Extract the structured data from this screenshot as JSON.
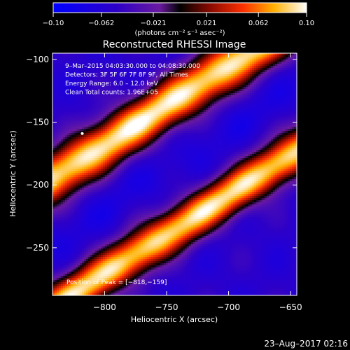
{
  "chart_data": {
    "type": "heatmap",
    "title": "Reconstructed RHESSI Image",
    "xlabel": "Heliocentric X (arcsec)",
    "ylabel": "Heliocentric Y (arcsec)",
    "xlim": [
      -842,
      -645
    ],
    "ylim": [
      -288,
      -95
    ],
    "x_ticks": [
      -800,
      -750,
      -700,
      -650
    ],
    "x_tick_labels": [
      "−800",
      "−750",
      "−700",
      "−650"
    ],
    "y_ticks": [
      -100,
      -150,
      -200,
      -250
    ],
    "y_tick_labels": [
      "−100",
      "−150",
      "−200",
      "−250"
    ],
    "colorbar": {
      "range": [
        -0.1,
        0.1
      ],
      "ticks": [
        -0.1,
        -0.062,
        -0.021,
        0.021,
        0.062,
        0.1
      ],
      "tick_labels": [
        "−0.10",
        "−0.062",
        "−0.021",
        "0.021",
        "0.062",
        "0.10"
      ],
      "unit_label": "(photons cm⁻² s⁻¹ asec⁻²)"
    },
    "annotations": [
      " 9–Mar–2015 04:03:30.000 to 04:08:30.000",
      "Detectors: 3F 5F 6F 7F 8F 9F, All Times",
      "Energy Range: 6.0 – 12.0 keV",
      "Clean     Total counts: 1.96E+05"
    ],
    "peak_label": "Position of Peak = [−818,−159]",
    "peak": [
      -818,
      -159
    ],
    "bands": [
      {
        "y_intercept": -143,
        "slope": 0.63,
        "half_width": 27,
        "value": 0.095
      },
      {
        "y_intercept": -246,
        "slope": 0.63,
        "half_width": 24,
        "value": 0.09
      }
    ],
    "trough": {
      "y_intercept": -194,
      "slope": 0.63,
      "half_width": 26,
      "value": -0.04
    }
  },
  "footer": {
    "timestamp": "23–Aug–2017 02:16"
  }
}
